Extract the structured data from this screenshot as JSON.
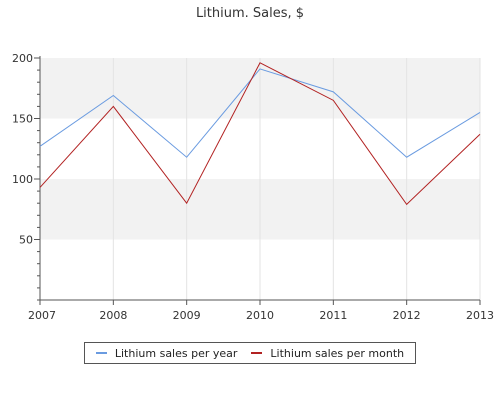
{
  "chart_data": {
    "type": "line",
    "title": "Lithium. Sales, $",
    "xlabel": "",
    "ylabel": "",
    "categories": [
      "2007",
      "2008",
      "2009",
      "2010",
      "2011",
      "2012",
      "2013"
    ],
    "series": [
      {
        "name": "Lithium sales per year",
        "color": "#6a9be0",
        "values": [
          127,
          169,
          118,
          191,
          172,
          118,
          155
        ]
      },
      {
        "name": "Lithium sales per month",
        "color": "#b22222",
        "values": [
          93,
          160,
          80,
          196,
          165,
          79,
          137
        ]
      }
    ],
    "ylim": [
      0,
      200
    ],
    "yticks": [
      50,
      100,
      150,
      200
    ],
    "grid": true,
    "band_colors": [
      "#f2f2f2",
      "#ffffff"
    ],
    "legend_position": "bottom"
  }
}
